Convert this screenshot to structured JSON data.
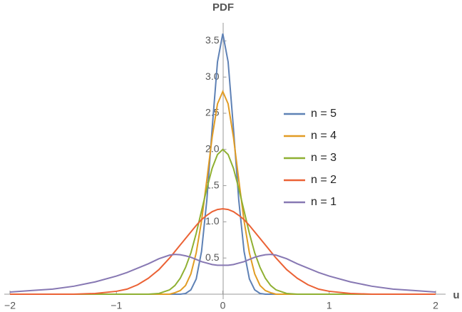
{
  "chart_data": {
    "type": "line",
    "x_label": "u",
    "y_label": "PDF",
    "x": [
      -2,
      -1.8,
      -1.6,
      -1.4,
      -1.2,
      -1,
      -0.9,
      -0.8,
      -0.7,
      -0.6,
      -0.5,
      -0.45,
      -0.4,
      -0.35,
      -0.3,
      -0.25,
      -0.2,
      -0.15,
      -0.1,
      -0.05,
      0,
      0.05,
      0.1,
      0.15,
      0.2,
      0.25,
      0.3,
      0.35,
      0.4,
      0.45,
      0.5,
      0.6,
      0.7,
      0.8,
      0.9,
      1,
      1.2,
      1.4,
      1.6,
      1.8,
      2
    ],
    "series": [
      {
        "name": "n = 5",
        "color": "#5e81b5",
        "values": [
          0,
          0,
          0,
          0,
          0,
          0,
          0,
          0,
          0,
          0,
          0,
          0,
          0,
          0.01,
          0.06,
          0.21,
          0.59,
          1.3,
          2.29,
          3.21,
          3.6,
          3.21,
          2.29,
          1.3,
          0.59,
          0.21,
          0.06,
          0.01,
          0,
          0,
          0,
          0,
          0,
          0,
          0,
          0,
          0,
          0,
          0,
          0,
          0
        ]
      },
      {
        "name": "n = 4",
        "color": "#e19c24",
        "values": [
          0,
          0,
          0,
          0,
          0,
          0,
          0,
          0,
          0,
          0,
          0,
          0.02,
          0.05,
          0.12,
          0.28,
          0.57,
          1.01,
          1.58,
          2.17,
          2.63,
          2.8,
          2.63,
          2.17,
          1.58,
          1.01,
          0.57,
          0.28,
          0.12,
          0.05,
          0.02,
          0,
          0,
          0,
          0,
          0,
          0,
          0,
          0,
          0,
          0,
          0
        ]
      },
      {
        "name": "n = 3",
        "color": "#8fb032",
        "values": [
          0,
          0,
          0,
          0,
          0,
          0,
          0,
          0,
          0,
          0.01,
          0.06,
          0.12,
          0.22,
          0.37,
          0.57,
          0.84,
          1.15,
          1.46,
          1.74,
          1.93,
          2.0,
          1.93,
          1.74,
          1.46,
          1.15,
          0.84,
          0.57,
          0.37,
          0.22,
          0.12,
          0.06,
          0.01,
          0,
          0,
          0,
          0,
          0,
          0,
          0,
          0,
          0
        ]
      },
      {
        "name": "n = 2",
        "color": "#eb6235",
        "values": [
          0,
          0,
          0,
          0,
          0.01,
          0.04,
          0.07,
          0.13,
          0.22,
          0.34,
          0.5,
          0.59,
          0.68,
          0.77,
          0.86,
          0.95,
          1.03,
          1.09,
          1.14,
          1.17,
          1.18,
          1.17,
          1.14,
          1.09,
          1.03,
          0.95,
          0.86,
          0.77,
          0.68,
          0.59,
          0.5,
          0.34,
          0.22,
          0.13,
          0.07,
          0.04,
          0.01,
          0,
          0,
          0,
          0
        ]
      },
      {
        "name": "n = 1",
        "color": "#8778b3",
        "values": [
          0.03,
          0.05,
          0.07,
          0.11,
          0.17,
          0.25,
          0.3,
          0.36,
          0.42,
          0.49,
          0.54,
          0.55,
          0.545,
          0.53,
          0.51,
          0.48,
          0.45,
          0.43,
          0.41,
          0.4,
          0.4,
          0.4,
          0.41,
          0.43,
          0.45,
          0.48,
          0.51,
          0.53,
          0.545,
          0.55,
          0.54,
          0.49,
          0.42,
          0.36,
          0.3,
          0.25,
          0.17,
          0.11,
          0.07,
          0.05,
          0.03
        ]
      }
    ],
    "xlim": [
      -2,
      2
    ],
    "ylim": [
      0,
      3.75
    ],
    "xticks": [
      {
        "value": -2,
        "label": "−2"
      },
      {
        "value": -1,
        "label": "−1"
      },
      0,
      1,
      2
    ],
    "yticks": [
      0.5,
      {
        "value": 1,
        "label": "1.0"
      },
      1.5,
      {
        "value": 2,
        "label": "2.0"
      },
      2.5,
      {
        "value": 3,
        "label": "3.0"
      },
      3.5
    ],
    "legend": "right"
  }
}
